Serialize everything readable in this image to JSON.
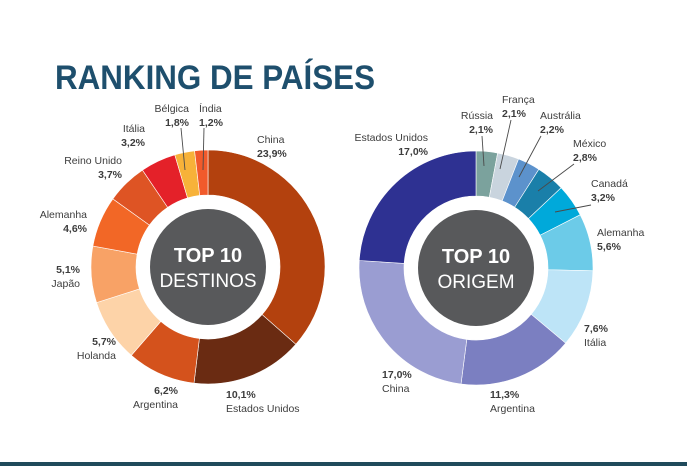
{
  "title": "RANKING DE PAÍSES",
  "colors": {
    "title": "#1e4f6d",
    "center": "#58595b",
    "label_text": "#3d3d3d",
    "leader_line": "#4a4a4a",
    "bottom_rule": "#1f4a5b"
  },
  "chart_data": [
    {
      "type": "pie",
      "center_label": {
        "line1": "TOP 10",
        "line2": "DESTINOS"
      },
      "categories": [
        "China",
        "Estados Unidos",
        "Argentina",
        "Holanda",
        "Japão",
        "Alemanha",
        "Reino Unido",
        "Itália",
        "Bélgica",
        "Índia"
      ],
      "values": [
        23.9,
        10.1,
        6.2,
        5.7,
        5.1,
        4.6,
        3.7,
        3.2,
        1.8,
        1.2
      ],
      "value_labels": [
        "23,9%",
        "10,1%",
        "6,2%",
        "5,7%",
        "5,1%",
        "4,6%",
        "3,7%",
        "3,2%",
        "1,8%",
        "1,2%"
      ],
      "colors": [
        "#b3410e",
        "#6a2b12",
        "#d4521c",
        "#fdd3a8",
        "#f8a266",
        "#f26726",
        "#de5424",
        "#e42129",
        "#f7b239",
        "#f15a2b"
      ]
    },
    {
      "type": "pie",
      "center_label": {
        "line1": "TOP 10",
        "line2": "ORIGEM"
      },
      "categories": [
        "Rússia",
        "França",
        "Austrália",
        "México",
        "Canadá",
        "Alemanha",
        "Itália",
        "Argentina",
        "China",
        "Estados Unidos"
      ],
      "values": [
        2.1,
        2.1,
        2.2,
        2.8,
        3.2,
        5.6,
        7.6,
        11.3,
        17.0,
        17.0
      ],
      "value_labels": [
        "2,1%",
        "2,1%",
        "2,2%",
        "2,8%",
        "3,2%",
        "5,6%",
        "7,6%",
        "11,3%",
        "17,0%",
        "17,0%"
      ],
      "colors": [
        "#7ba29d",
        "#c9d4de",
        "#5c92cc",
        "#1a7fa9",
        "#00a9da",
        "#6ccbe8",
        "#bde4f7",
        "#7b7fc1",
        "#9a9dd2",
        "#2e3192"
      ]
    }
  ]
}
